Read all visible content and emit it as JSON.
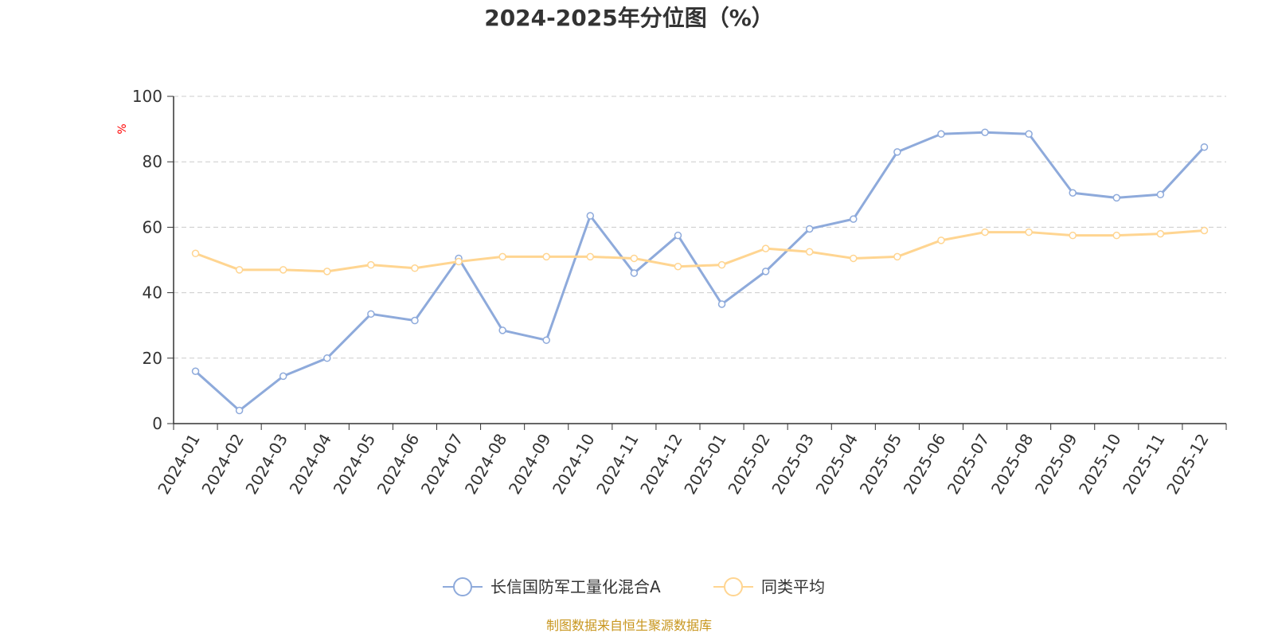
{
  "chart_data": {
    "type": "line",
    "title": "2024-2025年分位图（%）",
    "y_unit": "%",
    "ylim": [
      0,
      100
    ],
    "yticks": [
      0,
      20,
      40,
      60,
      80,
      100
    ],
    "grid": true,
    "legend_position": "bottom",
    "categories": [
      "2024-01",
      "2024-02",
      "2024-03",
      "2024-04",
      "2024-05",
      "2024-06",
      "2024-07",
      "2024-08",
      "2024-09",
      "2024-10",
      "2024-11",
      "2024-12",
      "2025-01",
      "2025-02",
      "2025-03",
      "2025-04",
      "2025-05",
      "2025-06",
      "2025-07",
      "2025-08",
      "2025-09",
      "2025-10",
      "2025-11",
      "2025-12"
    ],
    "series": [
      {
        "name": "长信国防军工量化混合A",
        "color": "#8eaadb",
        "values": [
          16,
          4,
          14.5,
          20,
          33.5,
          31.5,
          50.5,
          28.5,
          25.5,
          63.5,
          46,
          57.5,
          36.5,
          46.5,
          59.5,
          62.5,
          83,
          88.5,
          89,
          88.5,
          70.5,
          69,
          70,
          84.5
        ]
      },
      {
        "name": "同类平均",
        "color": "#ffd591",
        "values": [
          52,
          47,
          47,
          46.5,
          48.5,
          47.5,
          49.5,
          51,
          51,
          51,
          50.5,
          48,
          48.5,
          53.5,
          52.5,
          50.5,
          51,
          56,
          58.5,
          58.5,
          57.5,
          57.5,
          58,
          59
        ]
      }
    ]
  },
  "source_text": "制图数据来自恒生聚源数据库",
  "colors": {
    "axis": "#333333",
    "grid": "#cccccc",
    "unit": "#ff0000",
    "source": "#c8961e",
    "title": "#333333"
  }
}
